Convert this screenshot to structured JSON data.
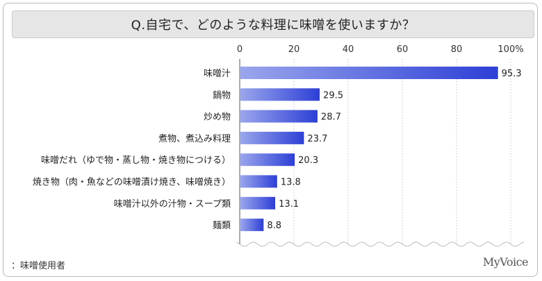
{
  "chart_data": {
    "type": "bar",
    "orientation": "horizontal",
    "title": "Q.自宅で、どのような料理に味噌を使いますか？",
    "categories": [
      "味噌汁",
      "鍋物",
      "炒め物",
      "煮物、煮込み料理",
      "味噌だれ（ゆで物・蒸し物・焼き物につける）",
      "焼き物（肉・魚などの味噌漬け焼き、味噌焼き）",
      "味噌汁以外の汁物・スープ類",
      "麺類"
    ],
    "values": [
      95.3,
      29.5,
      28.7,
      23.7,
      20.3,
      13.8,
      13.1,
      8.8
    ],
    "value_labels": [
      "95.3",
      "29.5",
      "28.7",
      "23.7",
      "20.3",
      "13.8",
      "13.1",
      "8.8"
    ],
    "xlim": [
      0,
      100
    ],
    "ticks": [
      "0",
      "20",
      "40",
      "60",
      "80",
      "100%"
    ],
    "tick_values": [
      0,
      20,
      40,
      60,
      80,
      100
    ],
    "grid": true,
    "bar_color_start": "#9aa6ec",
    "bar_color_end": "#2d3fd6"
  },
  "footnote": "：味噌使用者",
  "brand": "MyVoice"
}
